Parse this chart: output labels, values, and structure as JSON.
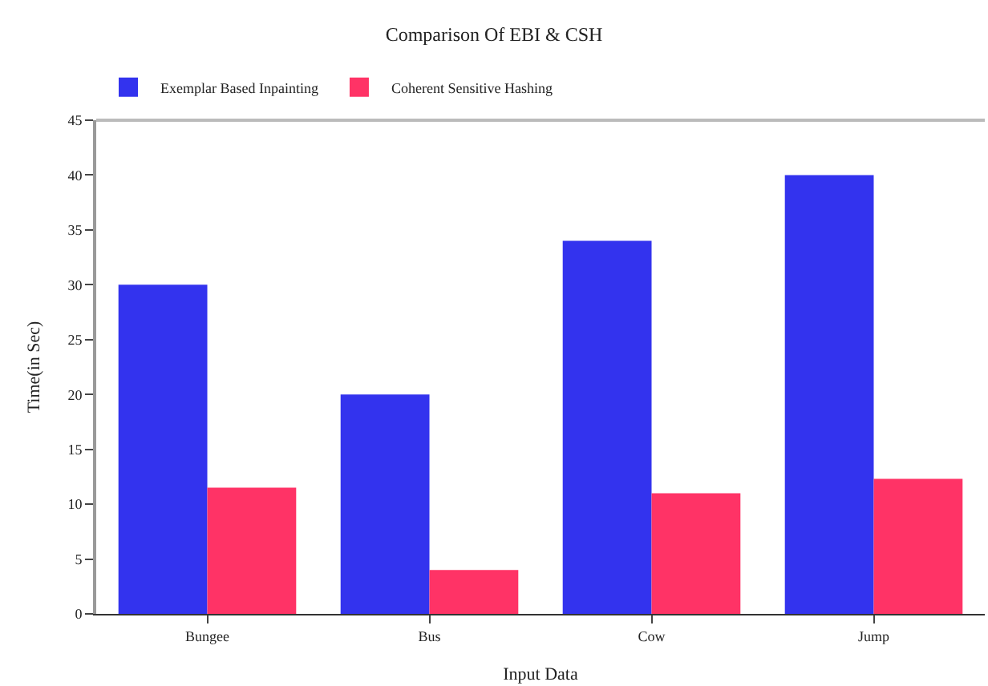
{
  "chart_data": {
    "type": "bar",
    "title": "Comparison Of EBI & CSH",
    "xlabel": "Input Data",
    "ylabel": "Time(in Sec)",
    "categories": [
      "Bungee",
      "Bus",
      "Cow",
      "Jump"
    ],
    "series": [
      {
        "name": "Exemplar Based Inpainting",
        "color": "#3333ee",
        "values": [
          30,
          20,
          34,
          40
        ]
      },
      {
        "name": "Coherent Sensitive Hashing",
        "color": "#ff3366",
        "values": [
          11.5,
          4,
          11,
          12.3
        ]
      }
    ],
    "ylim": [
      0,
      45
    ],
    "yticks": [
      0,
      5,
      10,
      15,
      20,
      25,
      30,
      35,
      40,
      45
    ],
    "legend": "top left"
  }
}
